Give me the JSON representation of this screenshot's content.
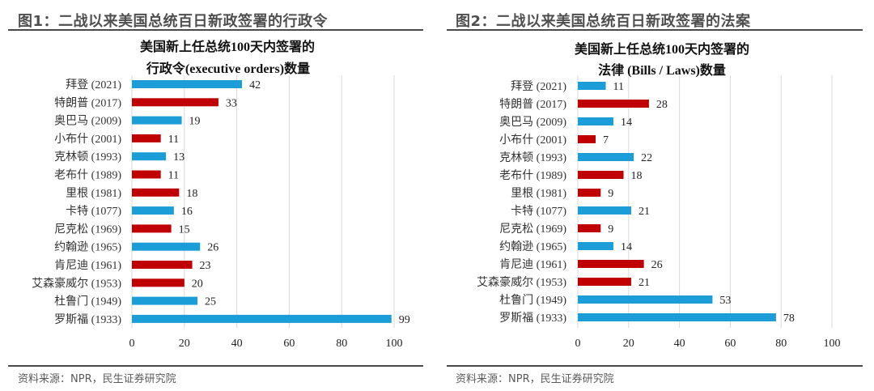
{
  "figures": [
    {
      "title": "图1：二战以来美国总统百日新政签署的行政令",
      "source": "资料来源：NPR，民生证券研究院"
    },
    {
      "title": "图2：二战以来美国总统百日新政签署的法案",
      "source": "资料来源：NPR，民生证券研究院"
    }
  ],
  "colors": {
    "democrat_blue": "#1b9ed8",
    "republican_red": "#c00000",
    "grid": "#d9d9d9"
  },
  "chart_data": [
    {
      "type": "bar",
      "orientation": "horizontal",
      "title_lines": [
        "美国新上任总统100天内签署的",
        "行政令(executive orders)数量"
      ],
      "categories": [
        "拜登 (2021)",
        "特朗普 (2017)",
        "奥巴马 (2009)",
        "小布什 (2001)",
        "克林顿 (1993)",
        "老布什 (1989)",
        "里根 (1981)",
        "卡特 (1077)",
        "尼克松 (1969)",
        "约翰逊 (1965)",
        "肯尼迪 (1961)",
        "艾森豪威尔 (1953)",
        "杜鲁门 (1949)",
        "罗斯福 (1933)"
      ],
      "values": [
        42,
        33,
        19,
        11,
        13,
        11,
        18,
        16,
        15,
        26,
        23,
        20,
        25,
        99
      ],
      "bar_colors": [
        "blue",
        "red",
        "blue",
        "red",
        "blue",
        "red",
        "red",
        "blue",
        "red",
        "blue",
        "red",
        "red",
        "blue",
        "blue"
      ],
      "xlim": [
        0,
        100
      ],
      "xticks": [
        0,
        20,
        40,
        60,
        80,
        100
      ],
      "xlabel": "",
      "ylabel": "",
      "grid": true,
      "legend": "none"
    },
    {
      "type": "bar",
      "orientation": "horizontal",
      "title_lines": [
        "美国新上任总统100天内签署的",
        "法律 (Bills / Laws)数量"
      ],
      "categories": [
        "拜登 (2021)",
        "特朗普 (2017)",
        "奥巴马 (2009)",
        "小布什 (2001)",
        "克林顿 (1993)",
        "老布什 (1989)",
        "里根 (1981)",
        "卡特 (1077)",
        "尼克松 (1969)",
        "约翰逊 (1965)",
        "肯尼迪 (1961)",
        "艾森豪威尔 (1953)",
        "杜鲁门 (1949)",
        "罗斯福 (1933)"
      ],
      "values": [
        11,
        28,
        14,
        7,
        22,
        18,
        9,
        21,
        9,
        14,
        26,
        21,
        53,
        78
      ],
      "bar_colors": [
        "blue",
        "red",
        "blue",
        "red",
        "blue",
        "red",
        "red",
        "blue",
        "red",
        "blue",
        "red",
        "red",
        "blue",
        "blue"
      ],
      "xlim": [
        0,
        100
      ],
      "xticks": [
        0,
        20,
        40,
        60,
        80,
        100
      ],
      "xlabel": "",
      "ylabel": "",
      "grid": true,
      "legend": "none"
    }
  ]
}
